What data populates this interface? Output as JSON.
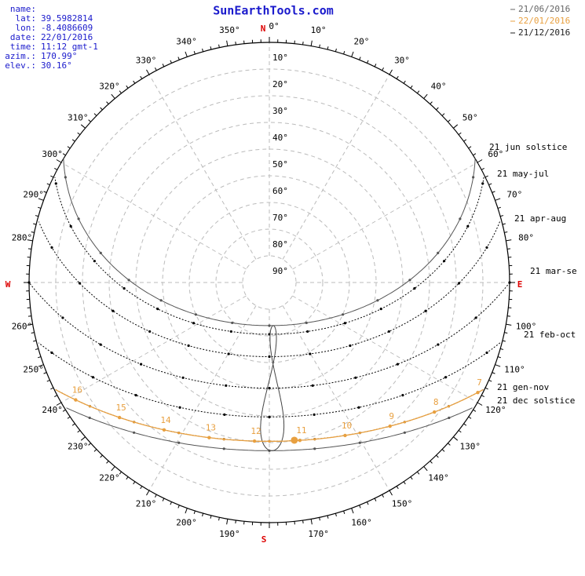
{
  "header": {
    "title": "SunEarthTools.com"
  },
  "info": [
    {
      "label": "name:"
    },
    {
      "label": "lat:",
      "value": "39.5982814"
    },
    {
      "label": "lon:",
      "value": "-8.4086609"
    },
    {
      "label": "date:",
      "value": "22/01/2016"
    },
    {
      "label": "time:",
      "value": "11:12 gmt-1"
    },
    {
      "label": "azim.:",
      "value": "170.99°"
    },
    {
      "label": "elev.:",
      "value": "30.16°"
    }
  ],
  "legend": [
    "21/06/2016",
    "22/01/2016",
    "21/12/2016"
  ],
  "compass": {
    "n": "N",
    "e": "E",
    "s": "S",
    "w": "W"
  },
  "azimuth_labels": [
    "0°",
    "10°",
    "20°",
    "30°",
    "40°",
    "50°",
    "60°",
    "70°",
    "80°",
    null,
    "100°",
    "110°",
    "120°",
    "130°",
    "140°",
    "150°",
    "160°",
    "170°",
    null,
    "190°",
    "200°",
    "210°",
    "220°",
    "230°",
    "240°",
    "250°",
    "260°",
    null,
    "280°",
    "290°",
    "300°",
    "310°",
    "320°",
    "330°",
    "340°",
    "350°"
  ],
  "elevation_labels": [
    "10°",
    "20°",
    "30°",
    "40°",
    "50°",
    "60°",
    "70°",
    "80°",
    "90°"
  ],
  "curve_labels": [
    "21 jun  solstice",
    "21 may-jul",
    "21 apr-aug",
    "21 mar-se",
    "21 feb-oct",
    "21 gen-nov",
    "21 dec  solstice"
  ],
  "hour_labels": [
    "7",
    "8",
    "9",
    "10",
    "11",
    "12",
    "13",
    "14",
    "15",
    "16"
  ]
}
